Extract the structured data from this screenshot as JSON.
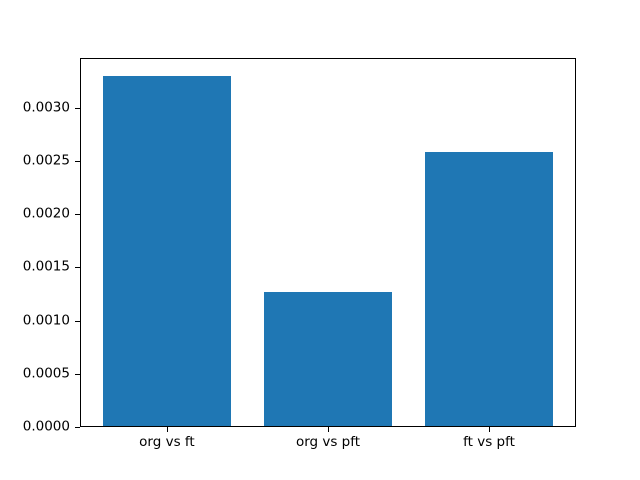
{
  "chart_data": {
    "type": "bar",
    "categories": [
      "org vs ft",
      "org vs pft",
      "ft vs pft"
    ],
    "values": [
      0.0033,
      0.00127,
      0.00258
    ],
    "title": "",
    "xlabel": "",
    "ylabel": "",
    "ylim": [
      0,
      0.003465
    ],
    "xlim": [
      -0.54,
      2.54
    ],
    "yticks": [
      0.0,
      0.0005,
      0.001,
      0.0015,
      0.002,
      0.0025,
      0.003
    ],
    "ytick_labels": [
      "0.0000",
      "0.0005",
      "0.0010",
      "0.0015",
      "0.0020",
      "0.0025",
      "0.0030"
    ],
    "bar_width_units": 0.8,
    "bar_color": "#1f77b4",
    "grid": false,
    "legend": null
  }
}
